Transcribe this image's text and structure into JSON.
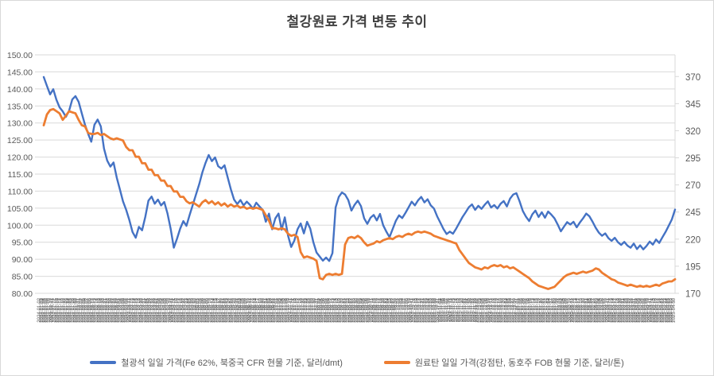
{
  "title": {
    "text": "철강원료 가격 변동 추이"
  },
  "colors": {
    "iron_ore": "#4472C4",
    "coking_coal": "#ED7D31",
    "grid": "#D9D9D9",
    "axis_text": "#595959",
    "title_text": "#404040",
    "border": "#D9D9D9",
    "background": "#FFFFFF"
  },
  "left_axis": {
    "min": 80,
    "max": 150,
    "step": 5,
    "tick_labels": [
      "150.00",
      "145.00",
      "140.00",
      "135.00",
      "130.00",
      "125.00",
      "120.00",
      "115.00",
      "110.00",
      "105.00",
      "100.00",
      "95.00",
      "90.00",
      "85.00",
      "80.00"
    ]
  },
  "right_axis": {
    "min": 170,
    "labeled_max": 370,
    "axis_max": 390,
    "step": 25,
    "tick_labels": [
      "370",
      "345",
      "320",
      "295",
      "270",
      "245",
      "220",
      "195",
      "170"
    ]
  },
  "x_axis": {
    "label_type": "daily-dates",
    "start_date": "2024-01-02",
    "end_date": "2025-04-30",
    "frequency": "business-days",
    "label_format": "YYYY-MM-DD",
    "rotation_deg": -90
  },
  "legend": [
    {
      "id": "iron_ore",
      "label": "철광석 일일 가격(Fe 62%, 북중국 CFR 현물 기준, 달러/dmt)",
      "color": "#4472C4"
    },
    {
      "id": "coking_coal",
      "label": "원료탄 일일 가격(강점탄, 동호주 FOB 현물 기준, 달러/톤)",
      "color": "#ED7D31"
    }
  ],
  "chart_data": {
    "type": "line",
    "title": "철강원료 가격 변동 추이",
    "grid": true,
    "legend_position": "bottom",
    "x_range": [
      "2024-01-02",
      "2025-04-30"
    ],
    "left_ylim": [
      80,
      150
    ],
    "right_ylim": [
      170,
      390
    ],
    "series": [
      {
        "id": "iron_ore",
        "name": "철광석 일일 가격(Fe 62%, 북중국 CFR 현물 기준, 달러/dmt)",
        "axis": "left",
        "unit": "달러/dmt",
        "color": "#4472C4",
        "values": [
          143.5,
          140.9,
          138.4,
          139.9,
          136.8,
          134.6,
          133.4,
          131.8,
          133.6,
          136.9,
          137.9,
          136.2,
          132.8,
          129.5,
          126.8,
          124.5,
          129.5,
          131.0,
          129.0,
          122.5,
          119.0,
          117.2,
          118.4,
          114.0,
          110.5,
          107.0,
          104.5,
          101.5,
          98.0,
          96.3,
          99.5,
          98.5,
          102.4,
          107.2,
          108.4,
          106.3,
          107.5,
          105.8,
          106.8,
          103.5,
          99.0,
          93.4,
          96.0,
          99.0,
          101.2,
          99.8,
          103.0,
          106.0,
          109.0,
          112.0,
          115.5,
          118.3,
          120.6,
          118.8,
          119.9,
          117.3,
          116.6,
          117.6,
          114.0,
          110.5,
          107.5,
          106.2,
          107.4,
          105.8,
          106.9,
          106.0,
          104.8,
          106.6,
          105.5,
          104.5,
          101.0,
          103.4,
          98.8,
          102.0,
          103.4,
          98.7,
          102.3,
          97.0,
          93.6,
          95.5,
          98.8,
          100.5,
          97.6,
          101.0,
          99.0,
          95.0,
          92.0,
          90.8,
          89.6,
          90.5,
          89.5,
          91.8,
          105.2,
          108.3,
          109.6,
          109.0,
          107.4,
          104.3,
          106.0,
          107.2,
          105.6,
          102.0,
          100.4,
          102.2,
          103.0,
          101.4,
          103.3,
          100.0,
          98.1,
          96.5,
          98.9,
          101.3,
          102.9,
          102.1,
          103.6,
          105.2,
          106.9,
          105.8,
          107.3,
          108.3,
          106.7,
          107.6,
          105.8,
          104.9,
          102.6,
          100.8,
          98.9,
          97.4,
          98.1,
          97.5,
          99.0,
          100.7,
          102.4,
          103.8,
          105.3,
          106.1,
          104.5,
          105.7,
          104.8,
          106.0,
          107.0,
          105.2,
          105.9,
          104.9,
          106.3,
          107.1,
          105.5,
          107.8,
          109.0,
          109.4,
          107.0,
          104.2,
          102.5,
          101.2,
          103.2,
          104.3,
          102.4,
          103.8,
          102.2,
          104.0,
          103.1,
          102.0,
          100.2,
          98.2,
          99.6,
          100.9,
          100.2,
          101.0,
          99.4,
          100.8,
          102.0,
          103.4,
          102.6,
          101.0,
          99.2,
          97.8,
          96.9,
          97.6,
          96.2,
          95.4,
          96.3,
          95.0,
          94.2,
          95.1,
          94.0,
          93.4,
          94.6,
          93.0,
          94.1,
          92.9,
          93.9,
          95.2,
          94.3,
          95.8,
          94.8,
          96.4,
          98.0,
          99.8,
          101.7,
          104.6
        ]
      },
      {
        "id": "coking_coal",
        "name": "원료탄 일일 가격(강점탄, 동호주 FOB 현물 기준, 달러/톤)",
        "axis": "right",
        "unit": "달러/톤",
        "color": "#ED7D31",
        "values": [
          325,
          335,
          339,
          340,
          338,
          336,
          330,
          334,
          338,
          337,
          336,
          330,
          325,
          324,
          318,
          317,
          317,
          318,
          316,
          317,
          315,
          313,
          312,
          313,
          312,
          311,
          305,
          302,
          302,
          296,
          296,
          290,
          290,
          284,
          284,
          279,
          279,
          274,
          274,
          269,
          269,
          264,
          264,
          259,
          259,
          255,
          253,
          254,
          252,
          250,
          254,
          256,
          253,
          255,
          252,
          254,
          251,
          253,
          250,
          252,
          250,
          251,
          249,
          250,
          248,
          249,
          248,
          249,
          248,
          247,
          242,
          237,
          230,
          230,
          229,
          230,
          229,
          225,
          223,
          224,
          222,
          208,
          203,
          204,
          203,
          202,
          200,
          184,
          183,
          187,
          188,
          187,
          188,
          187,
          188,
          215,
          221,
          222,
          221,
          223,
          221,
          217,
          214,
          215,
          216,
          218,
          217,
          219,
          220,
          221,
          220,
          222,
          223,
          222,
          224,
          225,
          224,
          226,
          227,
          226,
          227,
          226,
          225,
          223,
          222,
          221,
          220,
          219,
          218,
          217,
          216,
          210,
          206,
          202,
          198,
          196,
          194,
          193,
          192,
          194,
          193,
          195,
          196,
          195,
          196,
          194,
          195,
          193,
          194,
          192,
          190,
          188,
          186,
          184,
          181,
          179,
          177,
          176,
          175,
          174,
          175,
          176,
          179,
          182,
          185,
          187,
          188,
          189,
          188,
          189,
          190,
          189,
          190,
          191,
          193,
          192,
          189,
          187,
          185,
          183,
          182,
          180,
          179,
          178,
          177,
          178,
          177,
          176,
          177,
          176,
          177,
          176,
          177,
          178,
          177,
          179,
          180,
          181,
          181,
          183
        ]
      }
    ]
  }
}
